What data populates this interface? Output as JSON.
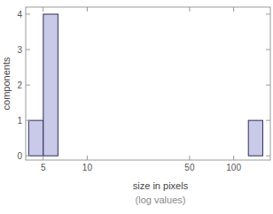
{
  "chart_data": {
    "type": "histogram",
    "x_label": "size in pixels",
    "y_label": "components",
    "annotations": [
      "(log values)"
    ],
    "bins": [
      3.98,
      5.01,
      6.31,
      7.94,
      10,
      12.6,
      15.8,
      20,
      25.1,
      31.6,
      39.8,
      50.1,
      63.1,
      79.4,
      100,
      126,
      158
    ],
    "values": [
      1,
      4,
      0,
      0,
      0,
      0,
      0,
      0,
      0,
      0,
      0,
      0,
      0,
      0,
      0,
      1
    ],
    "color": "#c9c9e8",
    "log": "x",
    "xlim": [
      3.8,
      178
    ],
    "ylim": [
      -0.12,
      4.2
    ],
    "xticks": [
      5,
      10,
      50,
      100
    ],
    "yticks": [
      0,
      1,
      2,
      3,
      4
    ],
    "grid": false
  }
}
